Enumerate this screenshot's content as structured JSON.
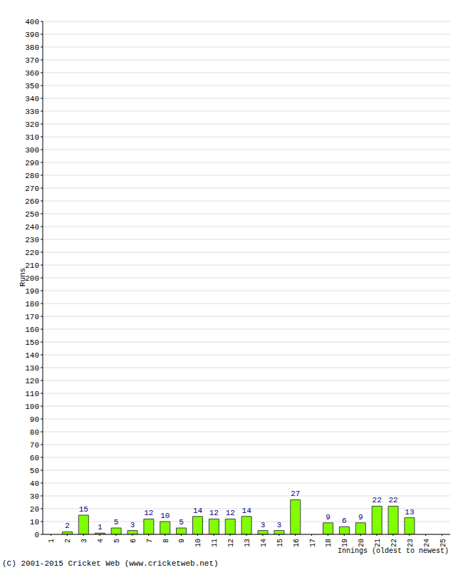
{
  "chart_data": {
    "type": "bar",
    "x_label": "Innings (oldest to newest)",
    "y_label": "Runs",
    "annotations": [
      "(C) 2001-2015 Cricket Web (www.cricketweb.net)"
    ],
    "categories": [
      "1",
      "2",
      "3",
      "4",
      "5",
      "6",
      "7",
      "8",
      "9",
      "10",
      "11",
      "12",
      "13",
      "14",
      "15",
      "16",
      "17",
      "18",
      "19",
      "20",
      "21",
      "22",
      "23",
      "24",
      "25"
    ],
    "values": [
      0,
      2,
      15,
      1,
      5,
      3,
      12,
      10,
      5,
      14,
      12,
      12,
      14,
      3,
      3,
      27,
      0,
      9,
      6,
      9,
      22,
      22,
      13,
      0,
      0
    ],
    "color": "#80ff00",
    "ylim": [
      0,
      400
    ],
    "yticks": [
      0,
      10,
      20,
      30,
      40,
      50,
      60,
      70,
      80,
      90,
      100,
      110,
      120,
      130,
      140,
      150,
      160,
      170,
      180,
      190,
      200,
      210,
      220,
      230,
      240,
      250,
      260,
      270,
      280,
      290,
      300,
      310,
      320,
      330,
      340,
      350,
      360,
      370,
      380,
      390,
      400
    ],
    "grid": true,
    "data_labels": true
  }
}
